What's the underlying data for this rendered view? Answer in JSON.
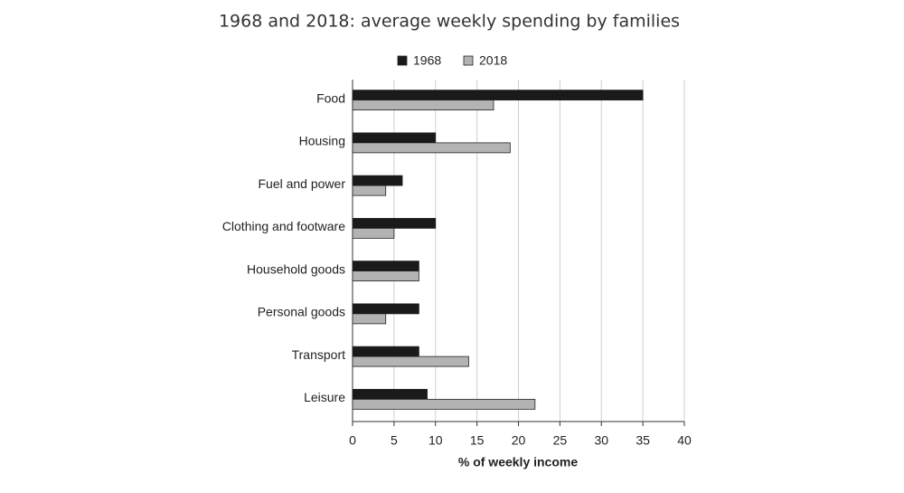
{
  "chart_data": {
    "type": "bar",
    "orientation": "horizontal",
    "title": "1968 and 2018: average weekly spending by families",
    "x_label": "% of weekly income",
    "categories": [
      "Food",
      "Housing",
      "Fuel and power",
      "Clothing and footware",
      "Household goods",
      "Personal goods",
      "Transport",
      "Leisure"
    ],
    "series": [
      {
        "name": "1968",
        "color": "#1a1a1a",
        "values": [
          35,
          10,
          6,
          10,
          8,
          8,
          8,
          9
        ]
      },
      {
        "name": "2018",
        "color": "#b3b3b3",
        "values": [
          17,
          19,
          4,
          5,
          8,
          4,
          14,
          22
        ]
      }
    ],
    "xlim": [
      0,
      40
    ],
    "xticks": [
      0,
      5,
      10,
      15,
      20,
      25,
      30,
      35,
      40
    ],
    "grid": true,
    "legend": "top"
  }
}
